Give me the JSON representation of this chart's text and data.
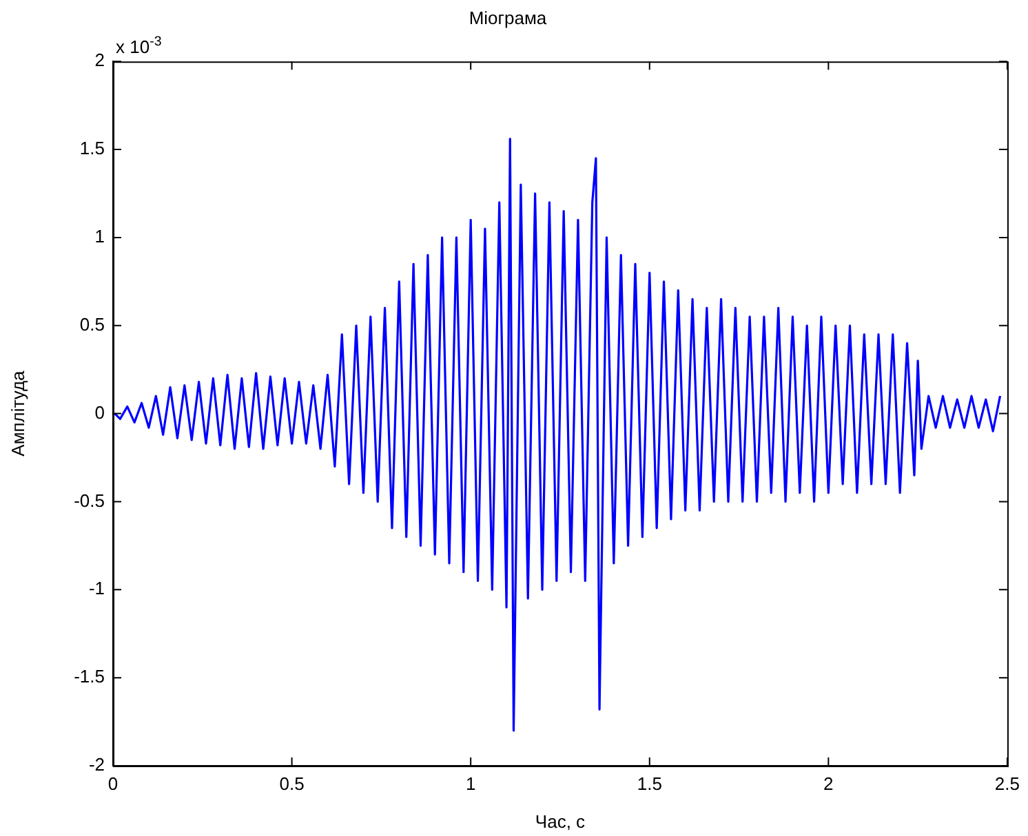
{
  "chart_data": {
    "type": "line",
    "title": "Міограма",
    "xlabel": "Час, с",
    "ylabel": "Амплітуда",
    "annotations": [
      "x 10$^{-3}$"
    ],
    "xlim": [
      0,
      2.5
    ],
    "xticks": [
      0,
      0.5,
      1,
      1.5,
      2,
      2.5
    ],
    "ylim": [
      -2,
      2
    ],
    "yticks": [
      -2,
      -1.5,
      -1,
      -0.5,
      0,
      0.5,
      1,
      1.5,
      2
    ],
    "grid": false,
    "legend": false,
    "marker": "none",
    "line_style": "solid",
    "series": [
      {
        "color": "#0000ff",
        "x": [
          0.005,
          0.02,
          0.04,
          0.06,
          0.08,
          0.1,
          0.12,
          0.14,
          0.16,
          0.18,
          0.2,
          0.22,
          0.24,
          0.26,
          0.28,
          0.3,
          0.32,
          0.34,
          0.36,
          0.38,
          0.4,
          0.42,
          0.44,
          0.46,
          0.48,
          0.5,
          0.52,
          0.54,
          0.56,
          0.58,
          0.6,
          0.62,
          0.64,
          0.66,
          0.68,
          0.7,
          0.72,
          0.74,
          0.76,
          0.78,
          0.8,
          0.82,
          0.84,
          0.86,
          0.88,
          0.9,
          0.92,
          0.94,
          0.96,
          0.98,
          1,
          1.02,
          1.04,
          1.06,
          1.08,
          1.1,
          1.11,
          1.12,
          1.14,
          1.16,
          1.18,
          1.2,
          1.22,
          1.24,
          1.26,
          1.28,
          1.3,
          1.32,
          1.34,
          1.35,
          1.36,
          1.38,
          1.4,
          1.42,
          1.44,
          1.46,
          1.48,
          1.5,
          1.52,
          1.54,
          1.56,
          1.58,
          1.6,
          1.62,
          1.64,
          1.66,
          1.68,
          1.7,
          1.72,
          1.74,
          1.76,
          1.78,
          1.8,
          1.82,
          1.84,
          1.86,
          1.88,
          1.9,
          1.92,
          1.94,
          1.96,
          1.98,
          2,
          2.02,
          2.04,
          2.06,
          2.08,
          2.1,
          2.12,
          2.14,
          2.16,
          2.18,
          2.2,
          2.22,
          2.24,
          2.25,
          2.26,
          2.28,
          2.3,
          2.32,
          2.34,
          2.36,
          2.38,
          2.4,
          2.42,
          2.44,
          2.46,
          2.48
        ],
        "values": [
          0,
          -0.03,
          0.04,
          -0.05,
          0.06,
          -0.08,
          0.1,
          -0.12,
          0.15,
          -0.14,
          0.16,
          -0.15,
          0.18,
          -0.17,
          0.2,
          -0.18,
          0.22,
          -0.2,
          0.2,
          -0.19,
          0.23,
          -0.2,
          0.21,
          -0.18,
          0.2,
          -0.17,
          0.18,
          -0.17,
          0.16,
          -0.2,
          0.22,
          -0.3,
          0.45,
          -0.4,
          0.5,
          -0.45,
          0.55,
          -0.5,
          0.6,
          -0.65,
          0.75,
          -0.7,
          0.85,
          -0.75,
          0.9,
          -0.8,
          1,
          -0.85,
          1,
          -0.9,
          1.1,
          -0.95,
          1.05,
          -1,
          1.2,
          -1.1,
          1.56,
          -1.8,
          1.3,
          -1.05,
          1.25,
          -1,
          1.2,
          -0.95,
          1.15,
          -0.9,
          1.1,
          -0.95,
          1.2,
          1.45,
          -1.68,
          1,
          -0.85,
          0.9,
          -0.75,
          0.85,
          -0.7,
          0.8,
          -0.65,
          0.75,
          -0.6,
          0.7,
          -0.55,
          0.65,
          -0.55,
          0.6,
          -0.5,
          0.65,
          -0.5,
          0.6,
          -0.5,
          0.55,
          -0.5,
          0.55,
          -0.45,
          0.6,
          -0.5,
          0.55,
          -0.45,
          0.5,
          -0.5,
          0.55,
          -0.45,
          0.5,
          -0.4,
          0.5,
          -0.45,
          0.45,
          -0.4,
          0.45,
          -0.4,
          0.45,
          -0.45,
          0.4,
          -0.35,
          0.3,
          -0.2,
          0.1,
          -0.08,
          0.1,
          -0.08,
          0.08,
          -0.08,
          0.1,
          -0.08,
          0.08,
          -0.1,
          0.1
        ]
      }
    ]
  }
}
